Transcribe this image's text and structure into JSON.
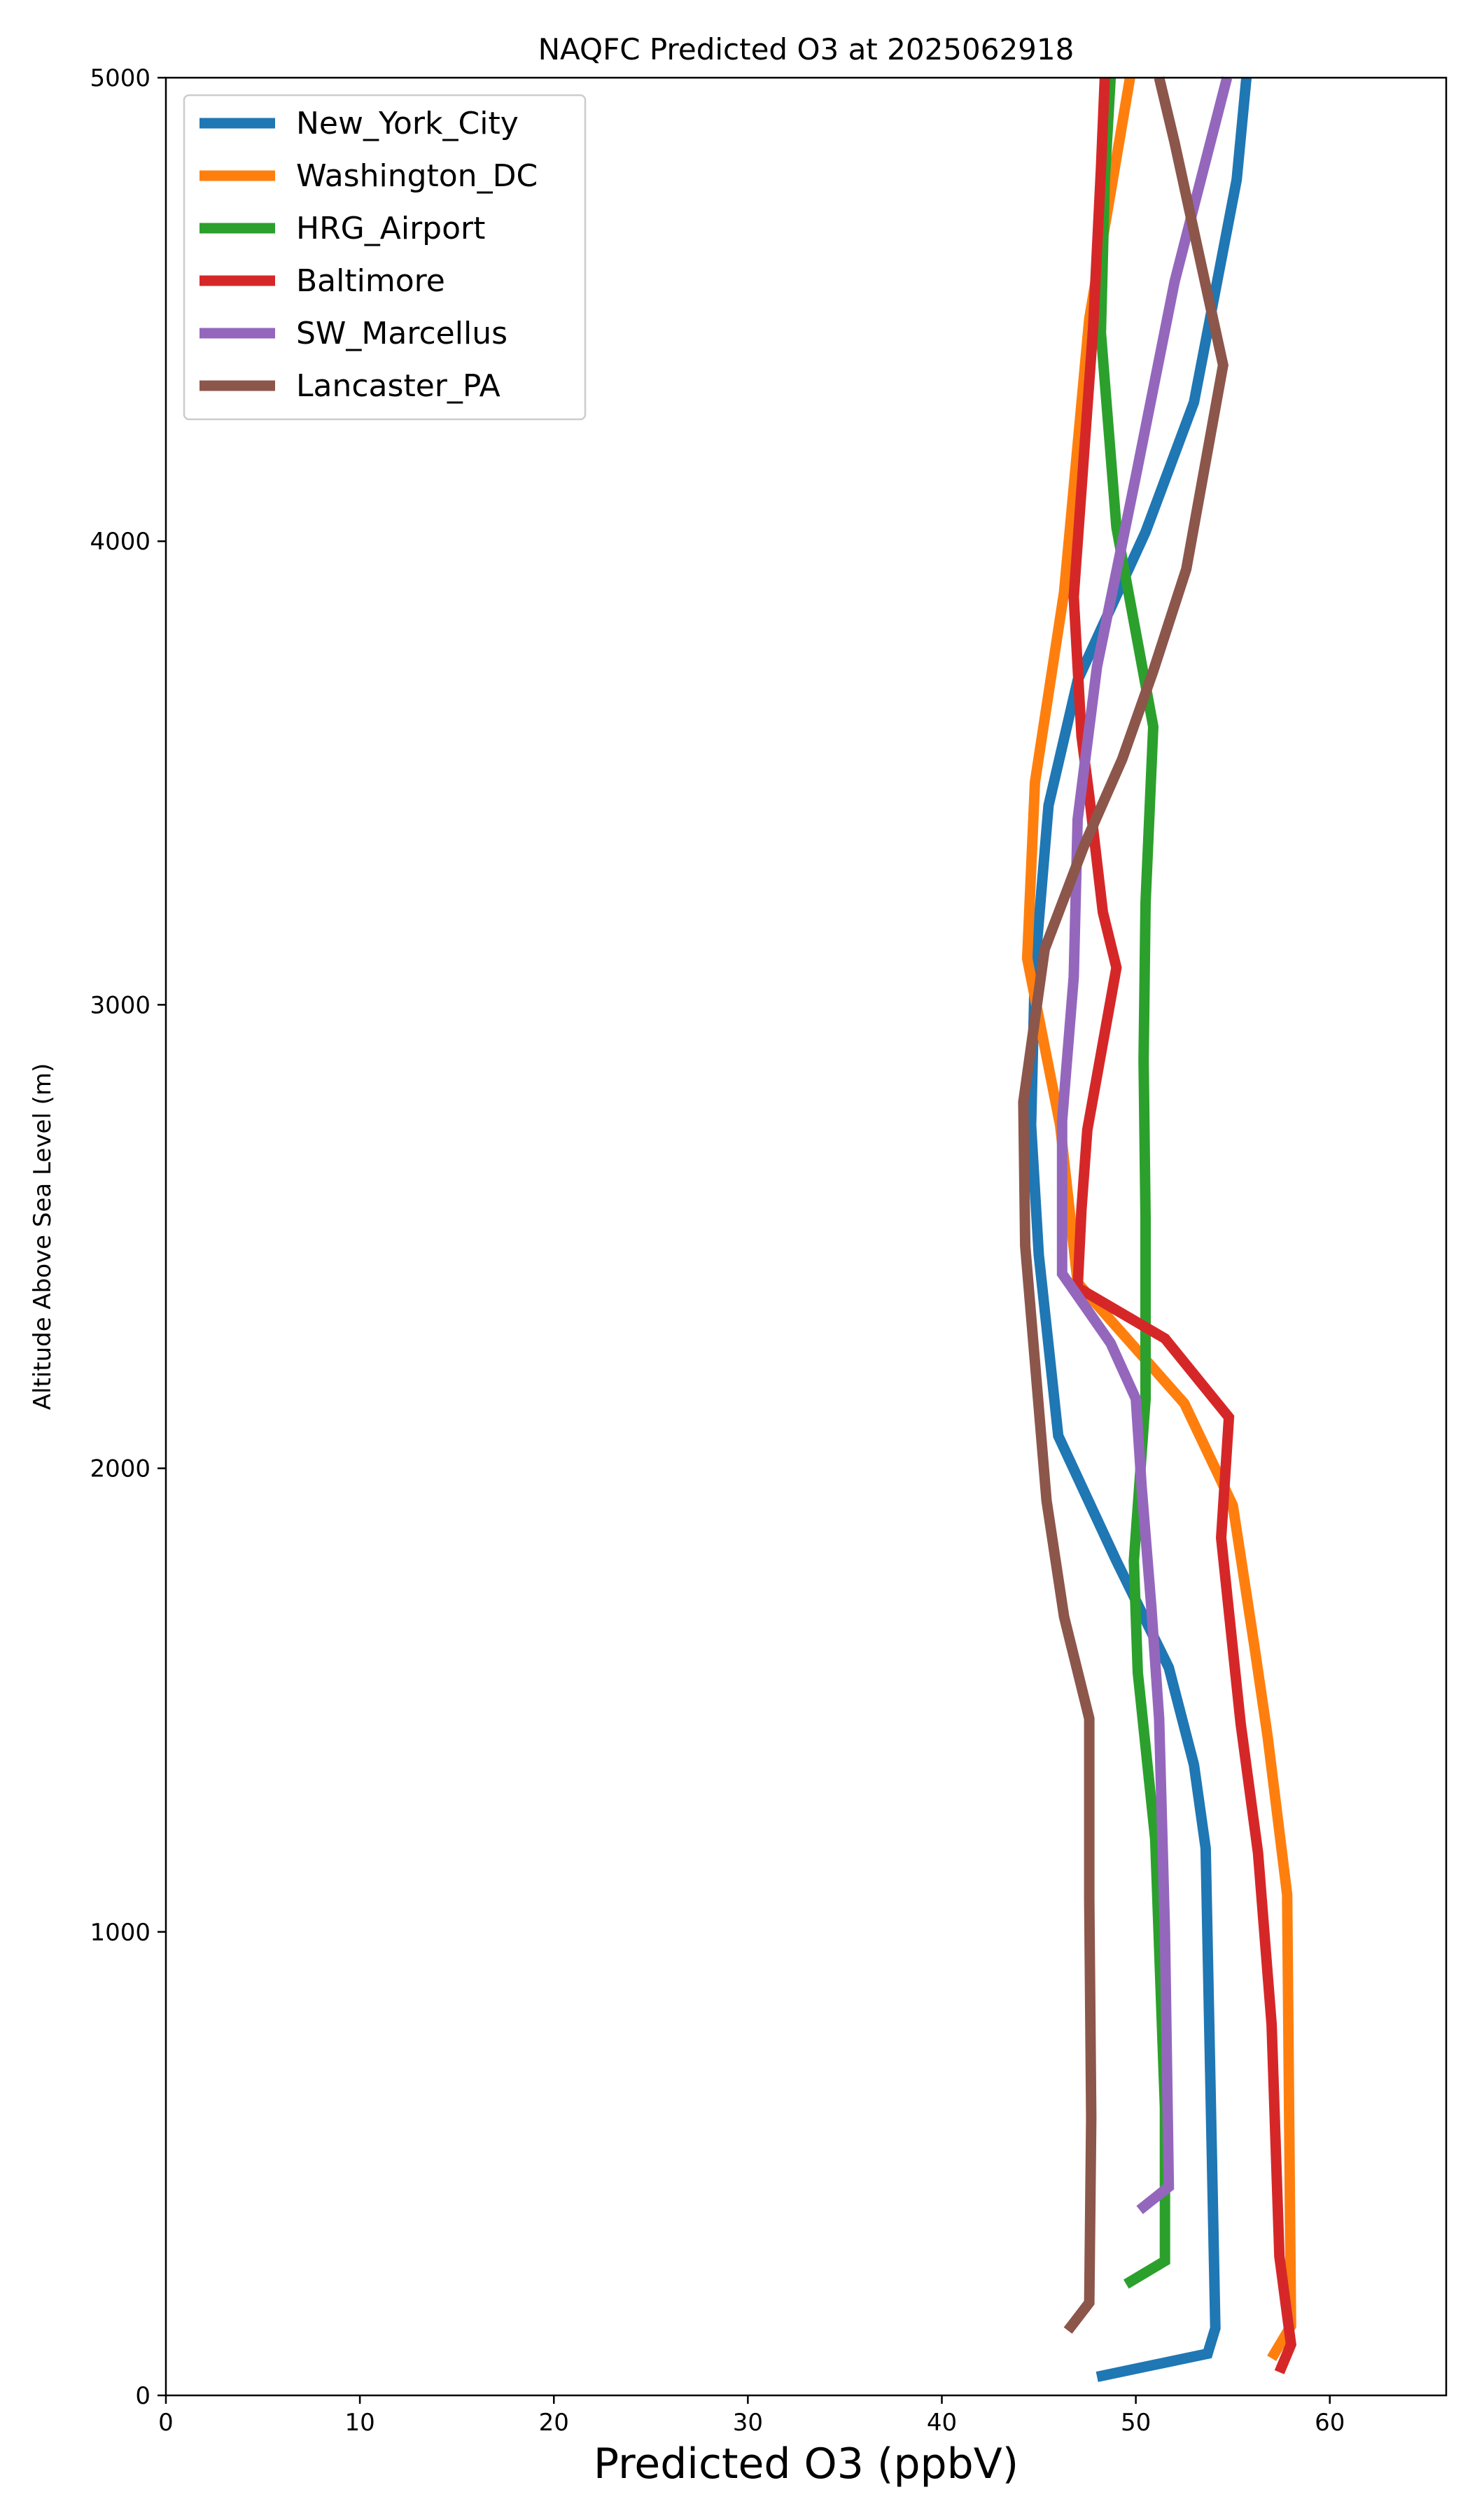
{
  "chart_data": {
    "type": "line",
    "title": "NAQFC Predicted O3 at 2025062918",
    "xlabel": "Predicted O3 (ppbV)",
    "ylabel": "Altitude Above Sea Level (m)",
    "xlim": [
      0,
      66
    ],
    "ylim": [
      0,
      5000
    ],
    "xticks": [
      0,
      10,
      20,
      30,
      40,
      50,
      60
    ],
    "yticks": [
      0,
      1000,
      2000,
      3000,
      4000,
      5000
    ],
    "grid": false,
    "legend_position": "upper-left",
    "series": [
      {
        "name": "New_York_City",
        "color": "#1f77b4",
        "points": [
          [
            48,
            40
          ],
          [
            53.7,
            90
          ],
          [
            54.1,
            145
          ],
          [
            53.6,
            1180
          ],
          [
            53,
            1360
          ],
          [
            51.7,
            1570
          ],
          [
            49,
            1800
          ],
          [
            46,
            2070
          ],
          [
            45,
            2460
          ],
          [
            44.6,
            2740
          ],
          [
            44.8,
            3080
          ],
          [
            45.5,
            3430
          ],
          [
            47,
            3700
          ],
          [
            50.5,
            4020
          ],
          [
            53,
            4300
          ],
          [
            55.2,
            4780
          ],
          [
            55.7,
            5000
          ]
        ]
      },
      {
        "name": "Washington_DC",
        "color": "#ff7f0e",
        "points": [
          [
            57,
            80
          ],
          [
            58,
            150
          ],
          [
            57.8,
            1080
          ],
          [
            56.8,
            1420
          ],
          [
            56.1,
            1620
          ],
          [
            55,
            1920
          ],
          [
            52.5,
            2140
          ],
          [
            47,
            2400
          ],
          [
            46.1,
            2740
          ],
          [
            44.4,
            3100
          ],
          [
            44.8,
            3480
          ],
          [
            46.3,
            3890
          ],
          [
            47.6,
            4480
          ],
          [
            49.7,
            5000
          ]
        ]
      },
      {
        "name": "HRG_Airport",
        "color": "#2ca02c",
        "points": [
          [
            49.5,
            240
          ],
          [
            51.5,
            290
          ],
          [
            51.5,
            620
          ],
          [
            51,
            1200
          ],
          [
            50.1,
            1560
          ],
          [
            49.9,
            1800
          ],
          [
            50.5,
            2150
          ],
          [
            50.5,
            2540
          ],
          [
            50.4,
            2880
          ],
          [
            50.5,
            3220
          ],
          [
            50.9,
            3600
          ],
          [
            49,
            4030
          ],
          [
            48.2,
            4450
          ],
          [
            48.4,
            4780
          ],
          [
            48.7,
            5000
          ]
        ]
      },
      {
        "name": "Baltimore",
        "color": "#d62728",
        "points": [
          [
            57.4,
            50
          ],
          [
            58,
            110
          ],
          [
            57.4,
            300
          ],
          [
            57,
            800
          ],
          [
            56.3,
            1170
          ],
          [
            55.4,
            1450
          ],
          [
            54.4,
            1850
          ],
          [
            54.8,
            2110
          ],
          [
            51.5,
            2280
          ],
          [
            47,
            2390
          ],
          [
            47.2,
            2560
          ],
          [
            47.5,
            2730
          ],
          [
            49,
            3080
          ],
          [
            48.3,
            3200
          ],
          [
            47.6,
            3450
          ],
          [
            47.2,
            3580
          ],
          [
            46.8,
            3880
          ],
          [
            47.8,
            4460
          ],
          [
            48.2,
            4800
          ],
          [
            48.4,
            5000
          ]
        ]
      },
      {
        "name": "SW_Marcellus",
        "color": "#9467bd",
        "points": [
          [
            50.2,
            400
          ],
          [
            51.7,
            450
          ],
          [
            51.5,
            1000
          ],
          [
            51.2,
            1460
          ],
          [
            50.8,
            1700
          ],
          [
            50.3,
            1960
          ],
          [
            50,
            2150
          ],
          [
            48.7,
            2270
          ],
          [
            46.2,
            2420
          ],
          [
            46.2,
            2750
          ],
          [
            46.8,
            3060
          ],
          [
            47,
            3400
          ],
          [
            48,
            3730
          ],
          [
            50,
            4140
          ],
          [
            52,
            4560
          ],
          [
            54.7,
            5000
          ]
        ]
      },
      {
        "name": "Lancaster_PA",
        "color": "#8c564b",
        "points": [
          [
            46.5,
            140
          ],
          [
            47.6,
            200
          ],
          [
            47.7,
            600
          ],
          [
            47.6,
            1070
          ],
          [
            47.6,
            1460
          ],
          [
            46.3,
            1680
          ],
          [
            45.4,
            1930
          ],
          [
            44.3,
            2480
          ],
          [
            44.2,
            2790
          ],
          [
            45.3,
            3120
          ],
          [
            47.3,
            3340
          ],
          [
            49.3,
            3530
          ],
          [
            50.9,
            3720
          ],
          [
            52.6,
            3940
          ],
          [
            54.5,
            4380
          ],
          [
            52,
            4860
          ],
          [
            51.2,
            5000
          ]
        ]
      }
    ]
  }
}
